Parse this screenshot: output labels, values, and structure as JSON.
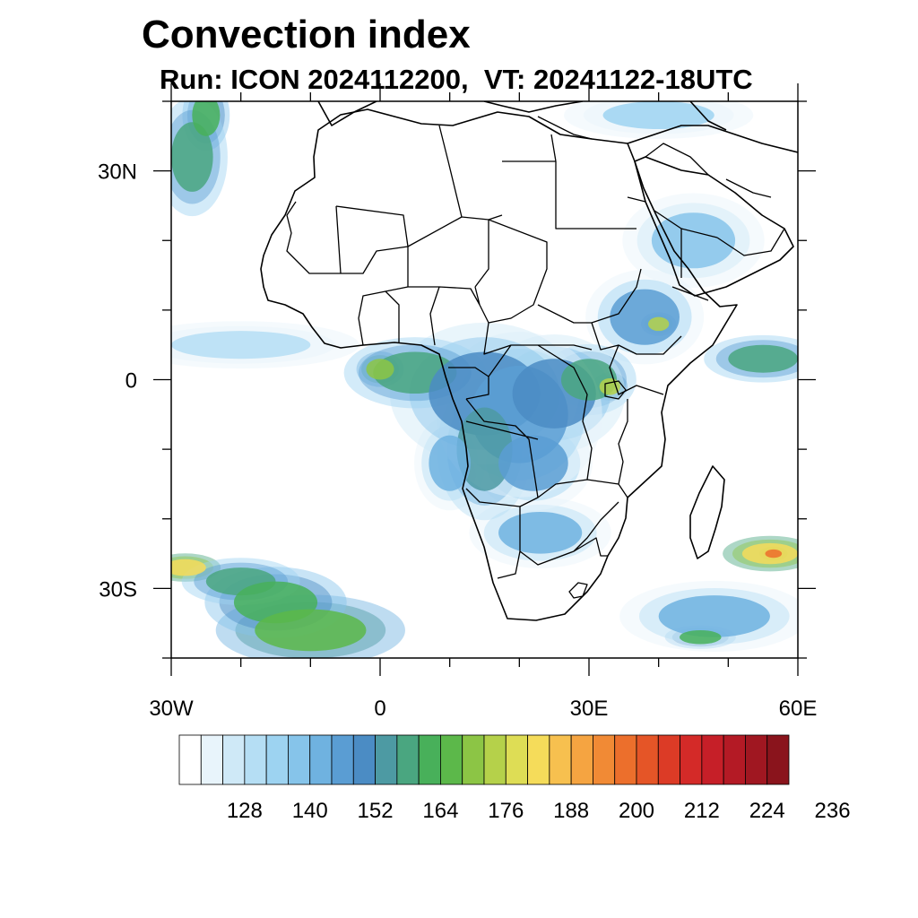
{
  "title": "Convection index",
  "subtitle": "Run: ICON 2024112200,  VT: 20241122-18UTC",
  "map": {
    "region": "Africa",
    "lon_range": [
      -30,
      60
    ],
    "lat_range": [
      -40,
      40
    ],
    "lat_ticks": [
      {
        "value": 30,
        "label": "30N"
      },
      {
        "value": 0,
        "label": "0"
      },
      {
        "value": -30,
        "label": "30S"
      }
    ],
    "lon_ticks": [
      {
        "value": -30,
        "label": "30W"
      },
      {
        "value": 0,
        "label": "0"
      },
      {
        "value": 30,
        "label": "30E"
      },
      {
        "value": 60,
        "label": "60E"
      }
    ]
  },
  "colorbar": {
    "colors": [
      "#ffffff",
      "#e8f4fb",
      "#cfe9f7",
      "#b5def4",
      "#9dd3f1",
      "#86c4ea",
      "#6fb2e0",
      "#5a9dd3",
      "#4b8cc4",
      "#4d9aa3",
      "#4aa680",
      "#48b05a",
      "#5cb84a",
      "#8cc545",
      "#b5d14a",
      "#dedd55",
      "#f5dc5a",
      "#f7c04f",
      "#f5a441",
      "#f18a35",
      "#ec6f2c",
      "#e55527",
      "#dc3b26",
      "#d42a28",
      "#c61f28",
      "#b41a25",
      "#a01721",
      "#8a141c"
    ],
    "labels": [
      "128",
      "140",
      "152",
      "164",
      "176",
      "188",
      "200",
      "212",
      "224",
      "236"
    ]
  },
  "field_blobs": [
    {
      "lon": 5,
      "lat": 1,
      "rx": 6,
      "ry": 3,
      "level": 10
    },
    {
      "lon": 0,
      "lat": 1.5,
      "rx": 2,
      "ry": 1.5,
      "level": 13
    },
    {
      "lon": 15,
      "lat": -2,
      "rx": 8,
      "ry": 6,
      "level": 8
    },
    {
      "lon": 20,
      "lat": -5,
      "rx": 7,
      "ry": 7,
      "level": 7
    },
    {
      "lon": 25,
      "lat": -2,
      "rx": 6,
      "ry": 5,
      "level": 8
    },
    {
      "lon": 30,
      "lat": 0,
      "rx": 4,
      "ry": 3,
      "level": 10
    },
    {
      "lon": 33,
      "lat": -1,
      "rx": 1.5,
      "ry": 1.2,
      "level": 14
    },
    {
      "lon": 15,
      "lat": -10,
      "rx": 4,
      "ry": 6,
      "level": 9
    },
    {
      "lon": 22,
      "lat": -12,
      "rx": 5,
      "ry": 4,
      "level": 7
    },
    {
      "lon": 23,
      "lat": -22,
      "rx": 6,
      "ry": 3,
      "level": 6
    },
    {
      "lon": 38,
      "lat": 9,
      "rx": 5,
      "ry": 4,
      "level": 7
    },
    {
      "lon": 40,
      "lat": 8,
      "rx": 1.5,
      "ry": 1,
      "level": 14
    },
    {
      "lon": 45,
      "lat": 20,
      "rx": 6,
      "ry": 4,
      "level": 5
    },
    {
      "lon": 55,
      "lat": 3,
      "rx": 5,
      "ry": 2,
      "level": 10
    },
    {
      "lon": 56,
      "lat": -25,
      "rx": 4,
      "ry": 1.5,
      "level": 16
    },
    {
      "lon": 56.5,
      "lat": -25,
      "rx": 1.2,
      "ry": 0.6,
      "level": 20
    },
    {
      "lon": 48,
      "lat": -34,
      "rx": 8,
      "ry": 3,
      "level": 6
    },
    {
      "lon": 46,
      "lat": -37,
      "rx": 3,
      "ry": 1,
      "level": 11
    },
    {
      "lon": -20,
      "lat": -29,
      "rx": 5,
      "ry": 2,
      "level": 10
    },
    {
      "lon": -15,
      "lat": -32,
      "rx": 6,
      "ry": 3,
      "level": 11
    },
    {
      "lon": -10,
      "lat": -36,
      "rx": 8,
      "ry": 3,
      "level": 12
    },
    {
      "lon": -28,
      "lat": -27,
      "rx": 3,
      "ry": 1.2,
      "level": 16
    },
    {
      "lon": -27,
      "lat": 32,
      "rx": 3,
      "ry": 5,
      "level": 10
    },
    {
      "lon": -25,
      "lat": 38,
      "rx": 2,
      "ry": 3,
      "level": 11
    },
    {
      "lon": -20,
      "lat": 5,
      "rx": 10,
      "ry": 2,
      "level": 3
    },
    {
      "lon": 40,
      "lat": 38,
      "rx": 8,
      "ry": 2,
      "level": 4
    },
    {
      "lon": 10,
      "lat": -12,
      "rx": 3,
      "ry": 4,
      "level": 6
    }
  ]
}
